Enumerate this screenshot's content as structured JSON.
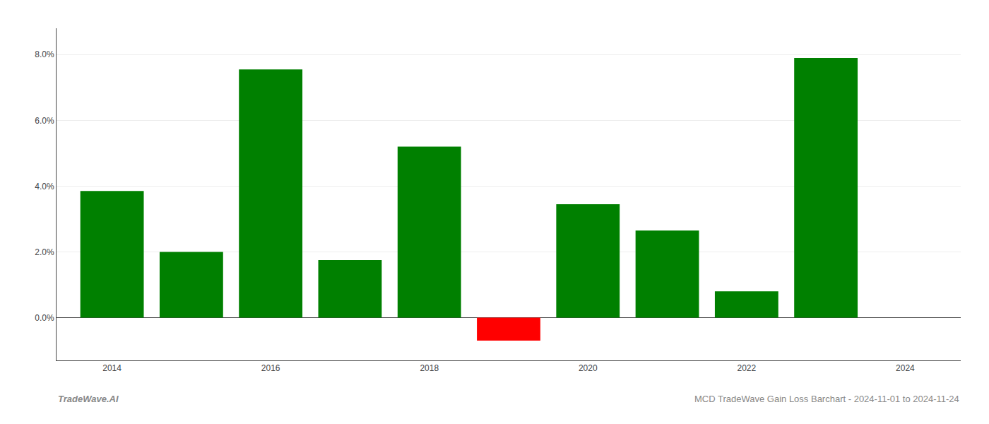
{
  "chart_data": {
    "type": "bar",
    "title": "MCD TradeWave Gain Loss Barchart - 2024-11-01 to 2024-11-24",
    "annotations": [
      {
        "text": "TradeWave.AI"
      }
    ],
    "x": [
      2014,
      2015,
      2016,
      2017,
      2018,
      2019,
      2020,
      2021,
      2022,
      2023
    ],
    "values": [
      0.0385,
      0.02,
      0.0755,
      0.0175,
      0.052,
      -0.007,
      0.0345,
      0.0265,
      0.008,
      0.079
    ],
    "colors": [
      "#008000",
      "#008000",
      "#008000",
      "#008000",
      "#008000",
      "#ff0000",
      "#008000",
      "#008000",
      "#008000",
      "#008000"
    ],
    "xlim": [
      2013.3,
      2024.7
    ],
    "xticks": [
      2014,
      2016,
      2018,
      2020,
      2022,
      2024
    ],
    "ylim": [
      -0.013,
      0.088
    ],
    "yticks": [
      {
        "value": 0.0,
        "label": "0.0%"
      },
      {
        "value": 0.02,
        "label": "2.0%"
      },
      {
        "value": 0.04,
        "label": "4.0%"
      },
      {
        "value": 0.06,
        "label": "6.0%"
      },
      {
        "value": 0.08,
        "label": "8.0%"
      }
    ],
    "grid": true
  }
}
